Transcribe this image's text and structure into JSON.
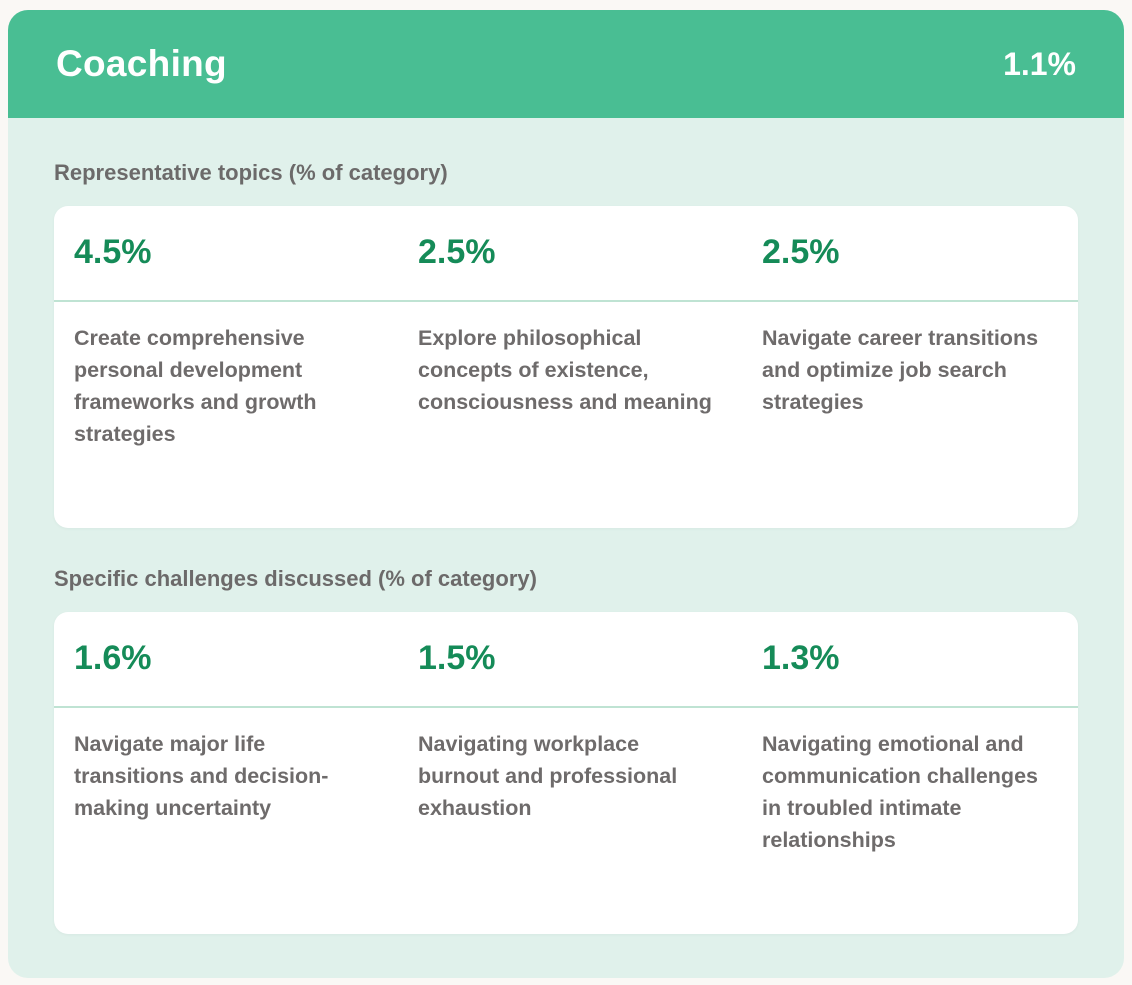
{
  "header": {
    "title": "Coaching",
    "percent": "1.1%"
  },
  "sections": [
    {
      "label": "Representative topics (% of category)",
      "items": [
        {
          "percent": "4.5%",
          "text": "Create comprehensive personal development frameworks and growth strategies"
        },
        {
          "percent": "2.5%",
          "text": "Explore philosophical concepts of existence, consciousness and meaning"
        },
        {
          "percent": "2.5%",
          "text": "Navigate career transitions and optimize job search strategies"
        }
      ]
    },
    {
      "label": "Specific challenges discussed (% of category)",
      "items": [
        {
          "percent": "1.6%",
          "text": "Navigate major life transitions and decision-making uncertainty"
        },
        {
          "percent": "1.5%",
          "text": "Navigating workplace burnout and professional exhaustion"
        },
        {
          "percent": "1.3%",
          "text": "Navigating emotional and communication challenges in troubled intimate relationships"
        }
      ]
    }
  ],
  "colors": {
    "header_green": "#49be93",
    "body_mint": "#e0f1eb",
    "percent_green": "#158b58",
    "divider_green": "#bfe3d3",
    "text_gray": "#6e6b6b",
    "page_background": "#faf8f5",
    "card_white": "#ffffff"
  }
}
